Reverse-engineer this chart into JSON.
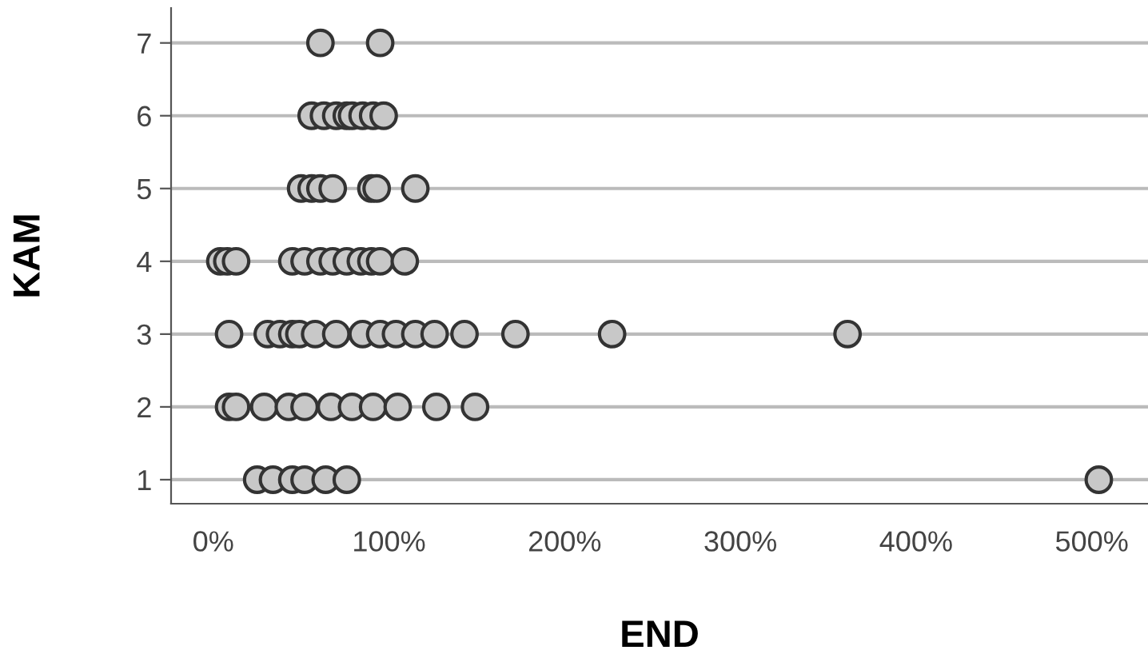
{
  "chart_data": {
    "type": "scatter",
    "xlabel": "END",
    "ylabel": "KAM",
    "x": [
      61,
      95,
      56,
      63,
      70,
      76,
      79,
      85,
      91,
      97,
      50,
      56,
      61,
      68,
      90,
      93,
      115,
      4,
      8,
      13,
      45,
      52,
      61,
      68,
      76,
      84,
      90,
      95,
      109,
      9,
      31,
      38,
      45,
      49,
      58,
      70,
      85,
      95,
      104,
      115,
      126,
      143,
      172,
      227,
      361,
      9,
      13,
      29,
      43,
      52,
      67,
      79,
      91,
      105,
      127,
      149,
      25,
      34,
      45,
      52,
      64,
      76,
      504
    ],
    "values": [
      7,
      7,
      6,
      6,
      6,
      6,
      6,
      6,
      6,
      6,
      5,
      5,
      5,
      5,
      5,
      5,
      5,
      4,
      4,
      4,
      4,
      4,
      4,
      4,
      4,
      4,
      4,
      4,
      4,
      3,
      3,
      3,
      3,
      3,
      3,
      3,
      3,
      3,
      3,
      3,
      3,
      3,
      3,
      3,
      3,
      2,
      2,
      2,
      2,
      2,
      2,
      2,
      2,
      2,
      2,
      2,
      1,
      1,
      1,
      1,
      1,
      1,
      1
    ],
    "color": "#c8c8c8",
    "marker": "circle",
    "xlim": [
      -24,
      532
    ],
    "ylim": [
      0.67,
      7.48
    ],
    "xticks": [
      {
        "value": 0,
        "label": "0%"
      },
      {
        "value": 100,
        "label": "100%"
      },
      {
        "value": 200,
        "label": "200%"
      },
      {
        "value": 300,
        "label": "300%"
      },
      {
        "value": 400,
        "label": "400%"
      },
      {
        "value": 500,
        "label": "500%"
      }
    ],
    "yticks": [
      1,
      2,
      3,
      4,
      5,
      6,
      7
    ],
    "grid": "y"
  }
}
